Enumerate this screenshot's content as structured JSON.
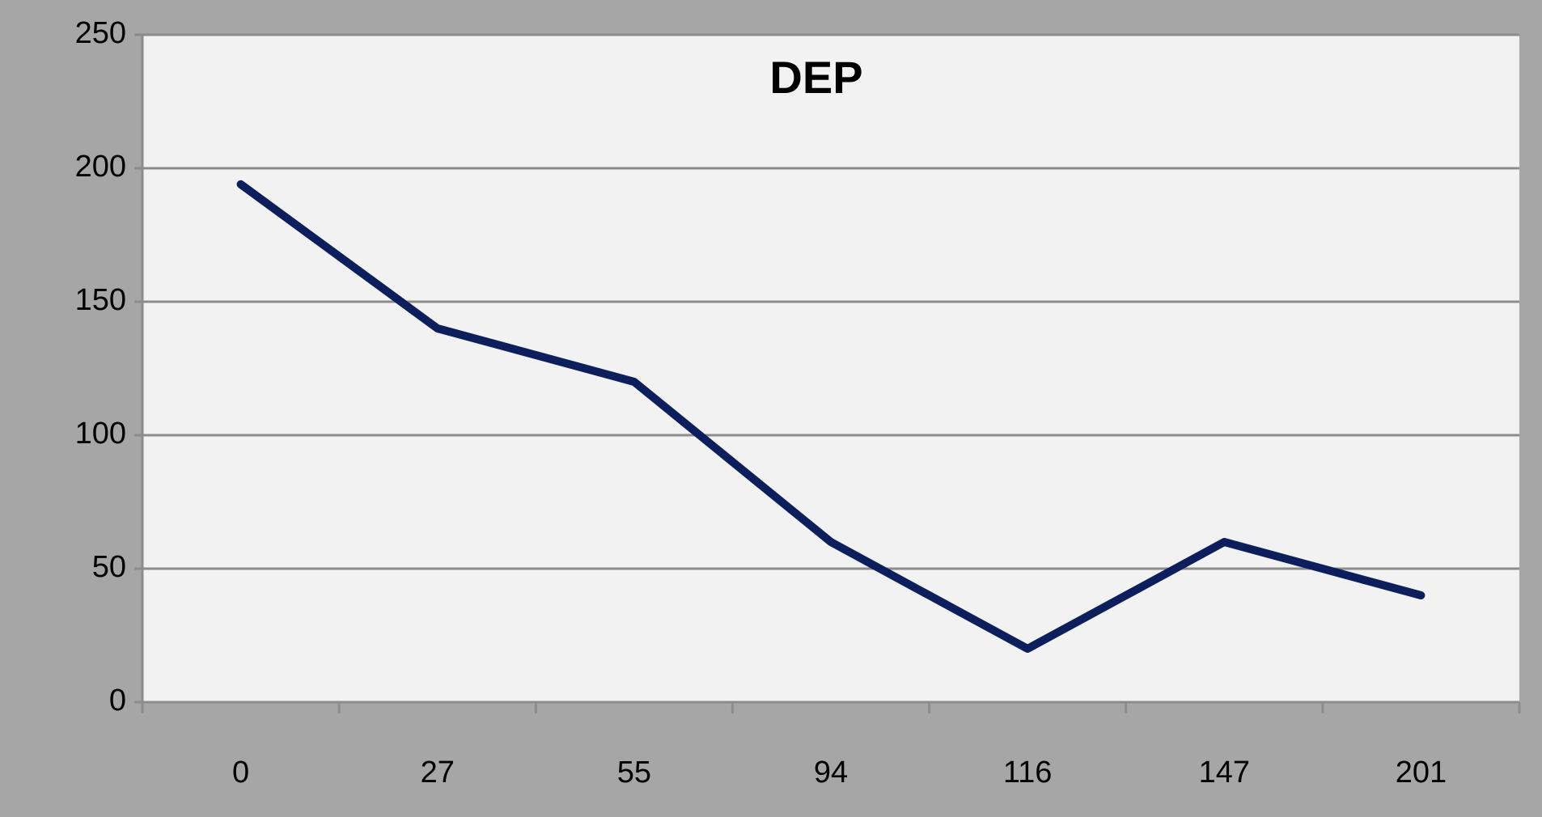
{
  "chart_data": {
    "type": "line",
    "title": "DEP",
    "categories": [
      "0",
      "27",
      "55",
      "94",
      "116",
      "147",
      "201"
    ],
    "values": [
      194,
      140,
      120,
      60,
      20,
      60,
      40
    ],
    "color": "#0c1f5c",
    "ylim": [
      0,
      250
    ],
    "yticks": [
      0,
      50,
      100,
      150,
      200,
      250
    ],
    "grid": true
  }
}
